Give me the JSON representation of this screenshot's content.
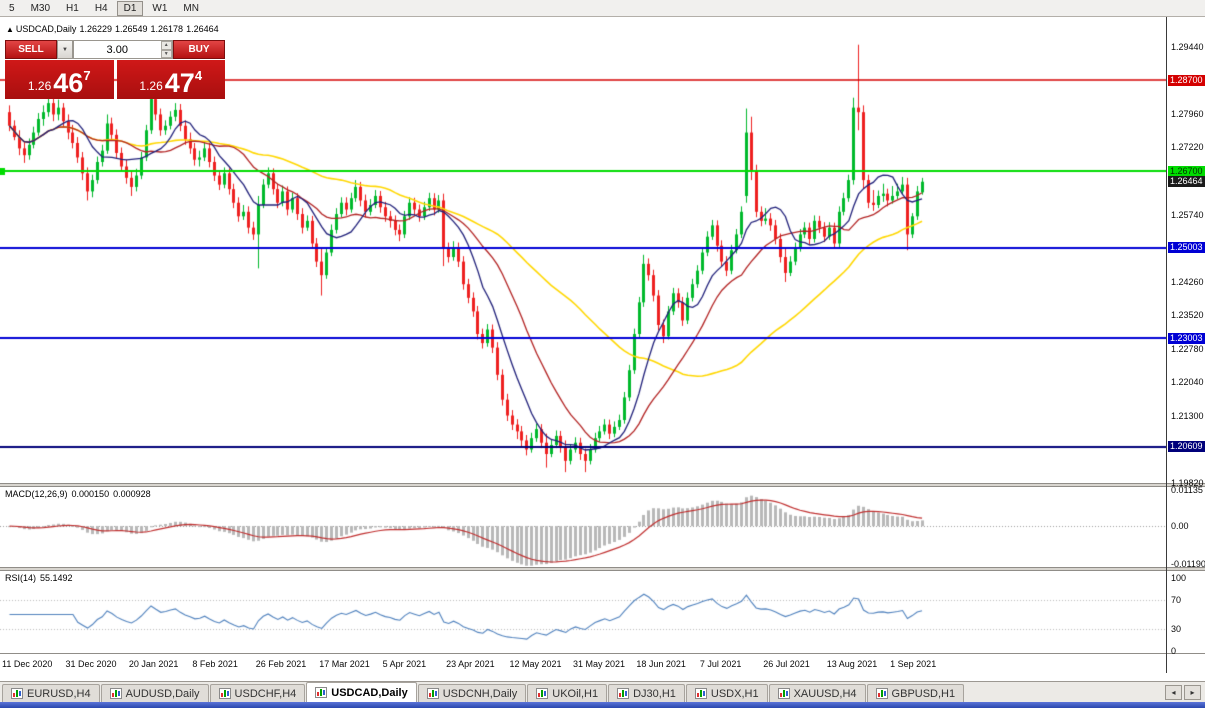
{
  "toolbar": {
    "periods": [
      {
        "label": "5",
        "active": false
      },
      {
        "label": "M30",
        "active": false
      },
      {
        "label": "H1",
        "active": false
      },
      {
        "label": "H4",
        "active": false
      },
      {
        "label": "D1",
        "active": true
      },
      {
        "label": "W1",
        "active": false
      },
      {
        "label": "MN",
        "active": false
      }
    ]
  },
  "chart_header": {
    "collapse_icon": "▲",
    "symbol": "USDCAD,Daily",
    "open": "1.26229",
    "high": "1.26549",
    "low": "1.26178",
    "close": "1.26464"
  },
  "trade_panel": {
    "sell_label": "SELL",
    "buy_label": "BUY",
    "volume": "3.00",
    "dropdown_icon": "▼",
    "spin_up_icon": "▲",
    "spin_down_icon": "▼",
    "sell_price": {
      "prefix": "1.26",
      "big": "46",
      "sup": "7"
    },
    "buy_price": {
      "prefix": "1.26",
      "big": "47",
      "sup": "4"
    }
  },
  "chart_data": {
    "type": "candlestick",
    "symbol": "USDCAD",
    "timeframe": "Daily",
    "view_max": 1.3008,
    "view_min": 1.1981,
    "colors": {
      "bull": "#00b92c",
      "bear": "#ee2020",
      "macd_hist": "#b8b8b8",
      "macd_signal": "#c03030",
      "rsi_line": "#4f81bd"
    },
    "grid_labels": [
      "1.29440",
      "1.28700",
      "1.27960",
      "1.27220",
      "1.26480",
      "1.25740",
      "1.25000",
      "1.24260",
      "1.23520",
      "1.22780",
      "1.22040",
      "1.21300",
      "1.20560",
      "1.19820"
    ],
    "levels": [
      {
        "price": 1.287,
        "text": "1.28700",
        "color": "#d40000",
        "text_color": "#ffffff",
        "line": true,
        "line_width": 1.4
      },
      {
        "price": 1.267,
        "text": "1.26700",
        "color": "#00dc00",
        "text_color": "#003300",
        "line": true,
        "line_width": 2,
        "anchor_marker": true
      },
      {
        "price": 1.26464,
        "text": "1.26464",
        "color": "#1a1a1a",
        "text_color": "#ffffff",
        "line": false
      },
      {
        "price": 1.25003,
        "text": "1.25003",
        "color": "#0000d4",
        "text_color": "#ffffff",
        "line": true,
        "line_width": 2
      },
      {
        "price": 1.23003,
        "text": "1.23003",
        "color": "#0000d4",
        "text_color": "#ffffff",
        "line": true,
        "line_width": 2
      },
      {
        "price": 1.20609,
        "text": "1.20609",
        "color": "#00007a",
        "text_color": "#ffffff",
        "line": true,
        "line_width": 2
      }
    ],
    "moving_averages": [
      {
        "name": "SMA 50",
        "period": 50,
        "color": "#ffd700",
        "width": 1.6
      },
      {
        "name": "SMA 20",
        "period": 20,
        "color": "#b22222",
        "width": 1.3
      },
      {
        "name": "SMA 9",
        "period": 9,
        "color": "#20207a",
        "width": 1.3
      }
    ],
    "x_labels": [
      "11 Dec 2020",
      "31 Dec 2020",
      "20 Jan 2021",
      "8 Feb 2021",
      "26 Feb 2021",
      "17 Mar 2021",
      "5 Apr 2021",
      "23 Apr 2021",
      "12 May 2021",
      "31 May 2021",
      "18 Jun 2021",
      "7 Jul 2021",
      "26 Jul 2021",
      "13 Aug 2021",
      "1 Sep 2021"
    ],
    "candles": [
      [
        1.28,
        1.2815,
        1.2758,
        1.277
      ],
      [
        1.277,
        1.2782,
        1.2738,
        1.2745
      ],
      [
        1.2745,
        1.276,
        1.2705,
        1.272
      ],
      [
        1.272,
        1.2735,
        1.2688,
        1.2705
      ],
      [
        1.2705,
        1.2742,
        1.2695,
        1.2728
      ],
      [
        1.2728,
        1.2768,
        1.272,
        1.2755
      ],
      [
        1.2755,
        1.2798,
        1.2748,
        1.2785
      ],
      [
        1.2785,
        1.2815,
        1.277,
        1.28
      ],
      [
        1.28,
        1.2845,
        1.279,
        1.282
      ],
      [
        1.282,
        1.2832,
        1.278,
        1.2795
      ],
      [
        1.2795,
        1.2828,
        1.2782,
        1.281
      ],
      [
        1.281,
        1.282,
        1.2768,
        1.278
      ],
      [
        1.278,
        1.2795,
        1.274,
        1.2755
      ],
      [
        1.2755,
        1.2772,
        1.272,
        1.2732
      ],
      [
        1.2732,
        1.2745,
        1.2688,
        1.27
      ],
      [
        1.27,
        1.2712,
        1.265,
        1.2665
      ],
      [
        1.2665,
        1.2678,
        1.2605,
        1.2625
      ],
      [
        1.2625,
        1.2662,
        1.2612,
        1.265
      ],
      [
        1.265,
        1.2702,
        1.2642,
        1.269
      ],
      [
        1.269,
        1.2728,
        1.268,
        1.2715
      ],
      [
        1.2715,
        1.2795,
        1.2708,
        1.2775
      ],
      [
        1.2775,
        1.2788,
        1.2738,
        1.275
      ],
      [
        1.275,
        1.2762,
        1.2698,
        1.271
      ],
      [
        1.271,
        1.2722,
        1.2668,
        1.268
      ],
      [
        1.268,
        1.2695,
        1.2642,
        1.2655
      ],
      [
        1.2655,
        1.2668,
        1.2615,
        1.2635
      ],
      [
        1.2635,
        1.2675,
        1.2625,
        1.266
      ],
      [
        1.266,
        1.2712,
        1.2652,
        1.27
      ],
      [
        1.27,
        1.2772,
        1.2692,
        1.276
      ],
      [
        1.276,
        1.285,
        1.2752,
        1.283
      ],
      [
        1.283,
        1.2842,
        1.2782,
        1.2795
      ],
      [
        1.2795,
        1.2808,
        1.2748,
        1.276
      ],
      [
        1.276,
        1.2782,
        1.275,
        1.277
      ],
      [
        1.277,
        1.2802,
        1.2762,
        1.279
      ],
      [
        1.279,
        1.282,
        1.278,
        1.2805
      ],
      [
        1.2805,
        1.2818,
        1.2758,
        1.277
      ],
      [
        1.277,
        1.2782,
        1.2728,
        1.274
      ],
      [
        1.274,
        1.2755,
        1.2708,
        1.272
      ],
      [
        1.272,
        1.2732,
        1.2682,
        1.2695
      ],
      [
        1.2695,
        1.2715,
        1.268,
        1.27
      ],
      [
        1.27,
        1.2735,
        1.2692,
        1.272
      ],
      [
        1.272,
        1.2732,
        1.2678,
        1.269
      ],
      [
        1.269,
        1.2702,
        1.2648,
        1.266
      ],
      [
        1.266,
        1.2672,
        1.2628,
        1.264
      ],
      [
        1.264,
        1.2678,
        1.2632,
        1.2665
      ],
      [
        1.2665,
        1.2676,
        1.2618,
        1.263
      ],
      [
        1.263,
        1.2642,
        1.2588,
        1.26
      ],
      [
        1.26,
        1.2612,
        1.2558,
        1.257
      ],
      [
        1.257,
        1.2595,
        1.2562,
        1.258
      ],
      [
        1.258,
        1.2592,
        1.2532,
        1.2545
      ],
      [
        1.2545,
        1.2558,
        1.2518,
        1.253
      ],
      [
        1.253,
        1.2615,
        1.2455,
        1.2595
      ],
      [
        1.2595,
        1.2652,
        1.2588,
        1.264
      ],
      [
        1.264,
        1.2678,
        1.2632,
        1.2665
      ],
      [
        1.2665,
        1.2676,
        1.2618,
        1.263
      ],
      [
        1.263,
        1.2642,
        1.2588,
        1.26
      ],
      [
        1.26,
        1.2638,
        1.2592,
        1.2625
      ],
      [
        1.2625,
        1.2636,
        1.2572,
        1.2585
      ],
      [
        1.2585,
        1.2622,
        1.2578,
        1.261
      ],
      [
        1.261,
        1.2621,
        1.2562,
        1.2575
      ],
      [
        1.2575,
        1.2588,
        1.2532,
        1.2545
      ],
      [
        1.2545,
        1.2572,
        1.2538,
        1.256
      ],
      [
        1.256,
        1.2571,
        1.2498,
        1.251
      ],
      [
        1.251,
        1.2522,
        1.2458,
        1.247
      ],
      [
        1.247,
        1.25,
        1.2395,
        1.244
      ],
      [
        1.244,
        1.2502,
        1.2432,
        1.249
      ],
      [
        1.249,
        1.2552,
        1.2482,
        1.254
      ],
      [
        1.254,
        1.2588,
        1.2532,
        1.2575
      ],
      [
        1.2575,
        1.2612,
        1.2568,
        1.26
      ],
      [
        1.26,
        1.2612,
        1.2572,
        1.2585
      ],
      [
        1.2585,
        1.2622,
        1.2578,
        1.261
      ],
      [
        1.261,
        1.265,
        1.2602,
        1.2635
      ],
      [
        1.2635,
        1.2646,
        1.2592,
        1.2605
      ],
      [
        1.2605,
        1.2618,
        1.2568,
        1.258
      ],
      [
        1.258,
        1.2608,
        1.2572,
        1.2595
      ],
      [
        1.2595,
        1.2628,
        1.2588,
        1.2615
      ],
      [
        1.2615,
        1.2626,
        1.2578,
        1.259
      ],
      [
        1.259,
        1.2602,
        1.2558,
        1.257
      ],
      [
        1.257,
        1.2582,
        1.2545,
        1.256
      ],
      [
        1.256,
        1.2572,
        1.2528,
        1.254
      ],
      [
        1.254,
        1.2552,
        1.2515,
        1.253
      ],
      [
        1.253,
        1.2582,
        1.2522,
        1.257
      ],
      [
        1.257,
        1.2612,
        1.2562,
        1.26
      ],
      [
        1.26,
        1.2611,
        1.2572,
        1.2585
      ],
      [
        1.2585,
        1.2596,
        1.2558,
        1.257
      ],
      [
        1.257,
        1.2602,
        1.2562,
        1.259
      ],
      [
        1.259,
        1.2622,
        1.2582,
        1.261
      ],
      [
        1.261,
        1.2621,
        1.2572,
        1.2585
      ],
      [
        1.2585,
        1.2617,
        1.2578,
        1.2605
      ],
      [
        1.2605,
        1.262,
        1.246,
        1.25
      ],
      [
        1.25,
        1.2512,
        1.2468,
        1.248
      ],
      [
        1.248,
        1.2515,
        1.2472,
        1.25
      ],
      [
        1.25,
        1.2512,
        1.2458,
        1.247
      ],
      [
        1.247,
        1.2482,
        1.2408,
        1.242
      ],
      [
        1.242,
        1.2432,
        1.2378,
        1.239
      ],
      [
        1.239,
        1.2402,
        1.2348,
        1.236
      ],
      [
        1.236,
        1.2372,
        1.2298,
        1.231
      ],
      [
        1.231,
        1.2322,
        1.2278,
        1.229
      ],
      [
        1.229,
        1.2332,
        1.2282,
        1.232
      ],
      [
        1.232,
        1.2331,
        1.2268,
        1.228
      ],
      [
        1.228,
        1.2292,
        1.2208,
        1.222
      ],
      [
        1.222,
        1.2232,
        1.2152,
        1.2165
      ],
      [
        1.2165,
        1.2178,
        1.2118,
        1.213
      ],
      [
        1.213,
        1.2142,
        1.2098,
        1.211
      ],
      [
        1.211,
        1.2122,
        1.2078,
        1.2095
      ],
      [
        1.2095,
        1.2107,
        1.2062,
        1.2075
      ],
      [
        1.2075,
        1.2087,
        1.2042,
        1.2055
      ],
      [
        1.2055,
        1.2092,
        1.2048,
        1.208
      ],
      [
        1.208,
        1.2112,
        1.2072,
        1.21
      ],
      [
        1.21,
        1.2111,
        1.2058,
        1.207
      ],
      [
        1.207,
        1.209,
        1.2015,
        1.2045
      ],
      [
        1.2045,
        1.2077,
        1.2038,
        1.2065
      ],
      [
        1.2065,
        1.2097,
        1.2058,
        1.2085
      ],
      [
        1.2085,
        1.2096,
        1.2048,
        1.206
      ],
      [
        1.206,
        1.2075,
        1.2005,
        1.203
      ],
      [
        1.203,
        1.2067,
        1.2022,
        1.2055
      ],
      [
        1.2055,
        1.2082,
        1.2048,
        1.207
      ],
      [
        1.207,
        1.2081,
        1.2032,
        1.2045
      ],
      [
        1.2045,
        1.2057,
        1.2005,
        1.203
      ],
      [
        1.203,
        1.2067,
        1.2022,
        1.2055
      ],
      [
        1.2055,
        1.2092,
        1.2048,
        1.208
      ],
      [
        1.208,
        1.2107,
        1.2072,
        1.2095
      ],
      [
        1.2095,
        1.2122,
        1.2088,
        1.211
      ],
      [
        1.211,
        1.2121,
        1.2078,
        1.209
      ],
      [
        1.209,
        1.2117,
        1.2082,
        1.2105
      ],
      [
        1.2105,
        1.2132,
        1.2098,
        1.212
      ],
      [
        1.212,
        1.2182,
        1.2112,
        1.217
      ],
      [
        1.217,
        1.2242,
        1.2162,
        1.223
      ],
      [
        1.223,
        1.2322,
        1.2222,
        1.231
      ],
      [
        1.231,
        1.2392,
        1.2302,
        1.238
      ],
      [
        1.238,
        1.2485,
        1.237,
        1.2465
      ],
      [
        1.2465,
        1.2477,
        1.2428,
        1.244
      ],
      [
        1.244,
        1.2452,
        1.2382,
        1.2395
      ],
      [
        1.2395,
        1.2407,
        1.2318,
        1.233
      ],
      [
        1.233,
        1.2342,
        1.229,
        1.2305
      ],
      [
        1.2305,
        1.2372,
        1.2298,
        1.236
      ],
      [
        1.236,
        1.2412,
        1.2352,
        1.24
      ],
      [
        1.24,
        1.2411,
        1.2368,
        1.238
      ],
      [
        1.238,
        1.2392,
        1.2328,
        1.234
      ],
      [
        1.234,
        1.2402,
        1.2332,
        1.239
      ],
      [
        1.239,
        1.2432,
        1.2382,
        1.242
      ],
      [
        1.242,
        1.2462,
        1.2412,
        1.245
      ],
      [
        1.245,
        1.2502,
        1.2442,
        1.249
      ],
      [
        1.249,
        1.2537,
        1.2482,
        1.2525
      ],
      [
        1.2525,
        1.2562,
        1.2518,
        1.255
      ],
      [
        1.255,
        1.2561,
        1.2492,
        1.2505
      ],
      [
        1.2505,
        1.2517,
        1.2458,
        1.247
      ],
      [
        1.247,
        1.2482,
        1.2438,
        1.245
      ],
      [
        1.245,
        1.2507,
        1.2442,
        1.2495
      ],
      [
        1.2495,
        1.2542,
        1.2488,
        1.253
      ],
      [
        1.253,
        1.2592,
        1.2522,
        1.258
      ],
      [
        1.2615,
        1.2808,
        1.26,
        1.2755
      ],
      [
        1.2755,
        1.279,
        1.265,
        1.2672
      ],
      [
        1.2672,
        1.2684,
        1.2568,
        1.258
      ],
      [
        1.258,
        1.2592,
        1.2548,
        1.256
      ],
      [
        1.256,
        1.2588,
        1.2552,
        1.2565
      ],
      [
        1.2565,
        1.2577,
        1.2538,
        1.255
      ],
      [
        1.255,
        1.2562,
        1.2508,
        1.252
      ],
      [
        1.252,
        1.2532,
        1.2468,
        1.248
      ],
      [
        1.248,
        1.25,
        1.2425,
        1.2445
      ],
      [
        1.2445,
        1.2482,
        1.2438,
        1.247
      ],
      [
        1.247,
        1.2512,
        1.2462,
        1.25
      ],
      [
        1.25,
        1.2542,
        1.2492,
        1.253
      ],
      [
        1.253,
        1.2557,
        1.2522,
        1.2545
      ],
      [
        1.2545,
        1.2556,
        1.2508,
        1.252
      ],
      [
        1.252,
        1.2572,
        1.2512,
        1.256
      ],
      [
        1.256,
        1.2571,
        1.2533,
        1.2545
      ],
      [
        1.2545,
        1.2557,
        1.2513,
        1.2525
      ],
      [
        1.2525,
        1.2557,
        1.2518,
        1.2545
      ],
      [
        1.2545,
        1.2556,
        1.2498,
        1.251
      ],
      [
        1.251,
        1.2592,
        1.2502,
        1.258
      ],
      [
        1.258,
        1.2622,
        1.2572,
        1.261
      ],
      [
        1.261,
        1.2662,
        1.2602,
        1.265
      ],
      [
        1.265,
        1.2832,
        1.264,
        1.281
      ],
      [
        1.281,
        1.2949,
        1.276,
        1.28
      ],
      [
        1.28,
        1.2815,
        1.263,
        1.265
      ],
      [
        1.265,
        1.2662,
        1.2588,
        1.26
      ],
      [
        1.26,
        1.2628,
        1.2582,
        1.2595
      ],
      [
        1.2595,
        1.2627,
        1.2588,
        1.2615
      ],
      [
        1.2615,
        1.2642,
        1.2602,
        1.262
      ],
      [
        1.262,
        1.2631,
        1.2592,
        1.2605
      ],
      [
        1.2605,
        1.2637,
        1.2598,
        1.2615
      ],
      [
        1.2615,
        1.2642,
        1.2608,
        1.2625
      ],
      [
        1.2625,
        1.2657,
        1.2618,
        1.264
      ],
      [
        1.264,
        1.2655,
        1.2495,
        1.253
      ],
      [
        1.253,
        1.2577,
        1.2522,
        1.257
      ],
      [
        1.257,
        1.2637,
        1.2562,
        1.2625
      ],
      [
        1.26229,
        1.26549,
        1.26178,
        1.26464
      ]
    ],
    "macd": {
      "label": "MACD(12,26,9)",
      "value_main": "0.000150",
      "value_signal": "0.000928",
      "fast": 12,
      "slow": 26,
      "signal": 9,
      "scale_max": 0.01135,
      "scale_min": -0.0119,
      "axis": [
        {
          "v": 0.01135,
          "label": "0.01135"
        },
        {
          "v": 0,
          "label": "0.00"
        },
        {
          "v": -0.0119,
          "label": "-0.01190"
        }
      ]
    },
    "rsi": {
      "label": "RSI(14)",
      "value": "55.1492",
      "period": 14,
      "levels": [
        70,
        30
      ],
      "axis": [
        {
          "v": 100,
          "label": "100"
        },
        {
          "v": 70,
          "label": "70"
        },
        {
          "v": 30,
          "label": "30"
        },
        {
          "v": 0,
          "label": "0"
        }
      ]
    }
  },
  "bottom_tabs": {
    "scroll_left": "◂",
    "scroll_right": "▸",
    "tabs": [
      {
        "label": "EURUSD,H4",
        "active": false
      },
      {
        "label": "AUDUSD,Daily",
        "active": false
      },
      {
        "label": "USDCHF,H4",
        "active": false
      },
      {
        "label": "USDCAD,Daily",
        "active": true
      },
      {
        "label": "USDCNH,Daily",
        "active": false
      },
      {
        "label": "UKOil,H1",
        "active": false
      },
      {
        "label": "DJ30,H1",
        "active": false
      },
      {
        "label": "USDX,H1",
        "active": false
      },
      {
        "label": "XAUUSD,H4",
        "active": false
      },
      {
        "label": "GBPUSD,H1",
        "active": false
      }
    ]
  }
}
